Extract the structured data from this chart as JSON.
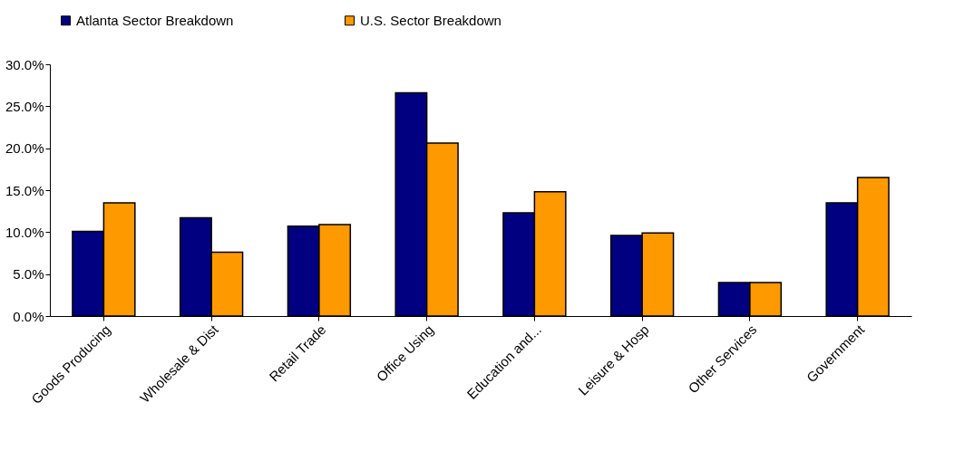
{
  "chart_data": {
    "type": "bar",
    "categories": [
      "Goods Producing",
      "Wholesale & Dist",
      "Retail Trade",
      "Office Using",
      "Education and...",
      "Leisure & Hosp",
      "Other Services",
      "Government"
    ],
    "series": [
      {
        "name": "Atlanta Sector Breakdown",
        "color": "#000080",
        "values": [
          10.1,
          11.7,
          10.7,
          26.6,
          12.3,
          9.6,
          4.0,
          13.5
        ]
      },
      {
        "name": "U.S. Sector Breakdown",
        "color": "#ff9900",
        "values": [
          13.5,
          7.6,
          10.9,
          20.6,
          14.8,
          9.9,
          4.0,
          16.5
        ]
      }
    ],
    "ylim": [
      0,
      30
    ],
    "yticks": [
      {
        "value": 0,
        "label": "0.0%"
      },
      {
        "value": 5,
        "label": "5.0%"
      },
      {
        "value": 10,
        "label": "10.0%"
      },
      {
        "value": 15,
        "label": "15.0%"
      },
      {
        "value": 20,
        "label": "20.0%"
      },
      {
        "value": 25,
        "label": "25.0%"
      },
      {
        "value": 30,
        "label": "30.0%"
      }
    ],
    "grid": false,
    "legend": "top"
  }
}
